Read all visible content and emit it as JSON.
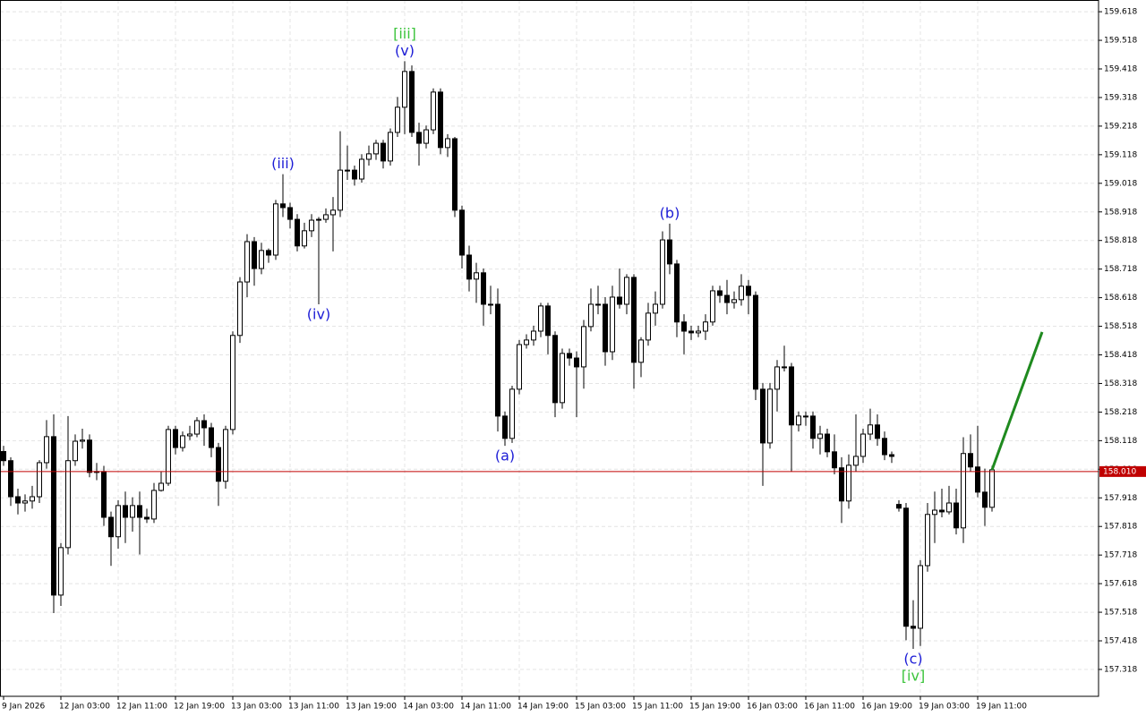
{
  "chart_data": {
    "type": "candlestick",
    "categories": [
      "9 Jan 2026",
      null,
      null,
      null,
      null,
      null,
      null,
      null,
      "12 Jan 03:00",
      null,
      null,
      null,
      null,
      null,
      null,
      null,
      "12 Jan 11:00",
      null,
      null,
      null,
      null,
      null,
      null,
      null,
      "12 Jan 19:00",
      null,
      null,
      null,
      null,
      null,
      null,
      null,
      "13 Jan 03:00",
      null,
      null,
      null,
      null,
      null,
      null,
      null,
      "13 Jan 11:00",
      null,
      null,
      null,
      null,
      null,
      null,
      null,
      "13 Jan 19:00",
      null,
      null,
      null,
      null,
      null,
      null,
      null,
      "14 Jan 03:00",
      null,
      null,
      null,
      null,
      null,
      null,
      null,
      "14 Jan 11:00",
      null,
      null,
      null,
      null,
      null,
      null,
      null,
      "14 Jan 19:00",
      null,
      null,
      null,
      null,
      null,
      null,
      null,
      "15 Jan 03:00",
      null,
      null,
      null,
      null,
      null,
      null,
      null,
      "15 Jan 11:00",
      null,
      null,
      null,
      null,
      null,
      null,
      null,
      "15 Jan 19:00",
      null,
      null,
      null,
      null,
      null,
      null,
      null,
      "16 Jan 03:00",
      null,
      null,
      null,
      null,
      null,
      null,
      null,
      "16 Jan 11:00",
      null,
      null,
      null,
      null,
      null,
      null,
      null,
      "16 Jan 19:00",
      null,
      null,
      null,
      null,
      null,
      null,
      null,
      "19 Jan 03:00",
      null,
      null,
      null,
      null,
      null,
      null,
      null,
      "19 Jan 11:00",
      null,
      null
    ],
    "ohlc": [
      [
        158.08,
        158.1,
        158.03,
        158.048
      ],
      [
        158.048,
        158.06,
        157.89,
        157.922
      ],
      [
        157.922,
        157.95,
        157.86,
        157.9
      ],
      [
        157.9,
        157.93,
        157.87,
        157.907
      ],
      [
        157.907,
        157.96,
        157.88,
        157.922
      ],
      [
        157.922,
        158.05,
        157.9,
        158.041
      ],
      [
        158.041,
        158.19,
        158.02,
        158.132
      ],
      [
        158.132,
        158.21,
        157.515,
        157.578
      ],
      [
        157.578,
        157.76,
        157.54,
        157.744
      ],
      [
        157.744,
        158.204,
        157.72,
        158.048
      ],
      [
        158.048,
        158.14,
        158.03,
        158.116
      ],
      [
        158.116,
        158.16,
        158.09,
        158.12
      ],
      [
        158.12,
        158.14,
        157.99,
        158.007
      ],
      [
        158.007,
        158.04,
        157.98,
        158.01
      ],
      [
        158.01,
        158.03,
        157.82,
        157.85
      ],
      [
        157.85,
        157.87,
        157.68,
        157.782
      ],
      [
        157.782,
        157.91,
        157.74,
        157.891
      ],
      [
        157.891,
        157.94,
        157.76,
        157.85
      ],
      [
        157.85,
        157.92,
        157.8,
        157.891
      ],
      [
        157.891,
        157.94,
        157.72,
        157.85
      ],
      [
        157.85,
        157.88,
        157.83,
        157.844
      ],
      [
        157.844,
        157.97,
        157.83,
        157.944
      ],
      [
        157.944,
        158.01,
        157.94,
        157.969
      ],
      [
        157.969,
        158.17,
        157.96,
        158.157
      ],
      [
        158.157,
        158.17,
        158.07,
        158.094
      ],
      [
        158.094,
        158.15,
        158.08,
        158.135
      ],
      [
        158.135,
        158.17,
        158.12,
        158.141
      ],
      [
        158.141,
        158.2,
        158.13,
        158.188
      ],
      [
        158.188,
        158.21,
        158.1,
        158.163
      ],
      [
        158.163,
        158.18,
        158.06,
        158.094
      ],
      [
        158.094,
        158.11,
        157.89,
        157.976
      ],
      [
        157.976,
        158.17,
        157.95,
        158.157
      ],
      [
        158.157,
        158.5,
        158.14,
        158.486
      ],
      [
        158.486,
        158.69,
        158.46,
        158.673
      ],
      [
        158.673,
        158.84,
        158.62,
        158.814
      ],
      [
        158.814,
        158.83,
        158.66,
        158.72
      ],
      [
        158.72,
        158.81,
        158.7,
        158.783
      ],
      [
        158.783,
        158.79,
        158.74,
        158.767
      ],
      [
        158.767,
        158.96,
        158.75,
        158.946
      ],
      [
        158.946,
        159.05,
        158.9,
        158.933
      ],
      [
        158.933,
        158.95,
        158.86,
        158.892
      ],
      [
        158.892,
        158.91,
        158.78,
        158.799
      ],
      [
        158.799,
        158.88,
        158.79,
        158.852
      ],
      [
        158.852,
        158.91,
        158.83,
        158.889
      ],
      [
        158.889,
        158.9,
        158.595,
        158.892
      ],
      [
        158.892,
        158.93,
        158.88,
        158.908
      ],
      [
        158.908,
        158.97,
        158.78,
        158.924
      ],
      [
        158.924,
        159.2,
        158.9,
        159.064
      ],
      [
        159.064,
        159.15,
        159.03,
        159.064
      ],
      [
        159.064,
        159.08,
        159.01,
        159.033
      ],
      [
        159.033,
        159.12,
        159.02,
        159.102
      ],
      [
        159.102,
        159.15,
        159.08,
        159.121
      ],
      [
        159.121,
        159.17,
        159.1,
        159.158
      ],
      [
        159.158,
        159.17,
        159.07,
        159.096
      ],
      [
        159.096,
        159.21,
        159.08,
        159.196
      ],
      [
        159.196,
        159.32,
        159.18,
        159.284
      ],
      [
        159.284,
        159.445,
        159.19,
        159.409
      ],
      [
        159.409,
        159.43,
        159.18,
        159.196
      ],
      [
        159.196,
        159.23,
        159.08,
        159.158
      ],
      [
        159.158,
        159.22,
        159.14,
        159.205
      ],
      [
        159.205,
        159.35,
        159.19,
        159.337
      ],
      [
        159.337,
        159.35,
        159.12,
        159.143
      ],
      [
        159.143,
        159.19,
        159.11,
        159.174
      ],
      [
        159.174,
        159.18,
        158.9,
        158.924
      ],
      [
        158.924,
        158.94,
        158.72,
        158.767
      ],
      [
        158.767,
        158.8,
        158.64,
        158.683
      ],
      [
        158.683,
        158.74,
        158.6,
        158.705
      ],
      [
        158.705,
        158.72,
        158.52,
        158.595
      ],
      [
        158.595,
        158.66,
        158.56,
        158.595
      ],
      [
        158.595,
        158.65,
        158.15,
        158.204
      ],
      [
        158.204,
        158.22,
        158.1,
        158.126
      ],
      [
        158.126,
        158.31,
        158.11,
        158.298
      ],
      [
        158.298,
        158.47,
        158.28,
        158.454
      ],
      [
        158.454,
        158.49,
        158.44,
        158.47
      ],
      [
        158.47,
        158.52,
        158.45,
        158.501
      ],
      [
        158.501,
        158.6,
        158.48,
        158.589
      ],
      [
        158.589,
        158.6,
        158.42,
        158.486
      ],
      [
        158.486,
        158.5,
        158.2,
        158.251
      ],
      [
        158.251,
        158.44,
        158.23,
        158.423
      ],
      [
        158.423,
        158.44,
        158.38,
        158.407
      ],
      [
        158.407,
        158.43,
        158.2,
        158.376
      ],
      [
        158.376,
        158.54,
        158.3,
        158.517
      ],
      [
        158.517,
        158.65,
        158.5,
        158.595
      ],
      [
        158.595,
        158.66,
        158.56,
        158.595
      ],
      [
        158.595,
        158.62,
        158.38,
        158.429
      ],
      [
        158.429,
        158.66,
        158.4,
        158.62
      ],
      [
        158.62,
        158.72,
        158.58,
        158.595
      ],
      [
        158.595,
        158.7,
        158.56,
        158.689
      ],
      [
        158.689,
        158.7,
        158.3,
        158.392
      ],
      [
        158.392,
        158.48,
        158.34,
        158.47
      ],
      [
        158.47,
        158.6,
        158.45,
        158.564
      ],
      [
        158.564,
        158.64,
        158.52,
        158.595
      ],
      [
        158.595,
        158.85,
        158.58,
        158.82
      ],
      [
        158.82,
        158.877,
        158.7,
        158.736
      ],
      [
        158.736,
        158.75,
        158.48,
        158.533
      ],
      [
        158.533,
        158.56,
        158.42,
        158.501
      ],
      [
        158.501,
        158.52,
        158.47,
        158.495
      ],
      [
        158.495,
        158.52,
        158.48,
        158.501
      ],
      [
        158.501,
        158.56,
        158.47,
        158.533
      ],
      [
        158.533,
        158.66,
        158.52,
        158.642
      ],
      [
        158.642,
        158.66,
        158.6,
        158.626
      ],
      [
        158.626,
        158.68,
        158.56,
        158.601
      ],
      [
        158.601,
        158.64,
        158.58,
        158.611
      ],
      [
        158.611,
        158.7,
        158.59,
        158.658
      ],
      [
        158.658,
        158.68,
        158.56,
        158.626
      ],
      [
        158.626,
        158.64,
        158.26,
        158.298
      ],
      [
        158.298,
        158.32,
        157.96,
        158.11
      ],
      [
        158.11,
        158.32,
        158.09,
        158.298
      ],
      [
        158.298,
        158.4,
        158.22,
        158.376
      ],
      [
        158.376,
        158.45,
        158.36,
        158.376
      ],
      [
        158.376,
        158.39,
        158.01,
        158.173
      ],
      [
        158.173,
        158.22,
        158.15,
        158.204
      ],
      [
        158.204,
        158.22,
        158.17,
        158.204
      ],
      [
        158.204,
        158.22,
        158.09,
        158.126
      ],
      [
        158.126,
        158.17,
        158.07,
        158.141
      ],
      [
        158.141,
        158.16,
        158.06,
        158.079
      ],
      [
        158.079,
        158.14,
        158.0,
        158.023
      ],
      [
        158.023,
        158.06,
        157.83,
        157.907
      ],
      [
        157.907,
        158.07,
        157.88,
        158.032
      ],
      [
        158.032,
        158.21,
        158.01,
        158.063
      ],
      [
        158.063,
        158.16,
        158.04,
        158.141
      ],
      [
        158.141,
        158.23,
        158.12,
        158.173
      ],
      [
        158.173,
        158.21,
        158.1,
        158.126
      ],
      [
        158.126,
        158.15,
        158.05,
        158.069
      ],
      [
        158.069,
        158.08,
        158.04,
        158.063
      ],
      [
        157.895,
        157.91,
        157.87,
        157.882
      ],
      [
        157.882,
        157.9,
        157.42,
        157.469
      ],
      [
        157.469,
        157.56,
        157.39,
        157.462
      ],
      [
        157.462,
        157.7,
        157.4,
        157.681
      ],
      [
        157.681,
        157.9,
        157.66,
        157.86
      ],
      [
        157.86,
        157.94,
        157.76,
        157.875
      ],
      [
        157.875,
        157.95,
        157.85,
        157.869
      ],
      [
        157.869,
        157.96,
        157.86,
        157.9
      ],
      [
        157.9,
        157.95,
        157.79,
        157.813
      ],
      [
        157.813,
        158.13,
        157.76,
        158.073
      ],
      [
        158.073,
        158.14,
        158.01,
        158.026
      ],
      [
        158.026,
        158.17,
        157.92,
        157.938
      ],
      [
        157.938,
        158.02,
        157.82,
        157.885
      ],
      [
        157.885,
        158.03,
        157.87,
        158.016
      ]
    ],
    "ylim": [
      157.224,
      159.659
    ],
    "yticks": [
      157.318,
      157.418,
      157.518,
      157.618,
      157.718,
      157.818,
      157.918,
      158.018,
      158.118,
      158.218,
      158.318,
      158.418,
      158.518,
      158.618,
      158.718,
      158.818,
      158.918,
      159.018,
      159.118,
      159.218,
      159.318,
      159.418,
      159.518,
      159.618
    ],
    "grid": true,
    "colors": {
      "up": "#ffffff",
      "down": "#000000",
      "outline": "#000000"
    },
    "price_line": {
      "value": 158.01,
      "label": "158.010",
      "color": "#c00000"
    },
    "annotations": [
      {
        "text": "(iii)",
        "candle": 39,
        "side": "above",
        "color": "#1c1cd6"
      },
      {
        "text": "(iv)",
        "candle": 44,
        "side": "below",
        "color": "#1c1cd6"
      },
      {
        "text": "(v)",
        "candle": 56,
        "side": "above",
        "color": "#1c1cd6"
      },
      {
        "text": "[iii]",
        "candle": 56,
        "side": "above",
        "color": "#3cc43c"
      },
      {
        "text": "(a)",
        "candle": 70,
        "side": "below",
        "color": "#1c1cd6"
      },
      {
        "text": "(b)",
        "candle": 93,
        "side": "above",
        "color": "#1c1cd6"
      },
      {
        "text": "(c)",
        "candle": 127,
        "side": "below",
        "color": "#1c1cd6"
      },
      {
        "text": "[iv]",
        "candle": 127,
        "side": "below",
        "color": "#3cc43c"
      }
    ],
    "forecast": {
      "x": [
        138,
        145
      ],
      "values": [
        158.016,
        158.498
      ],
      "color": "#1f8a1f"
    }
  }
}
